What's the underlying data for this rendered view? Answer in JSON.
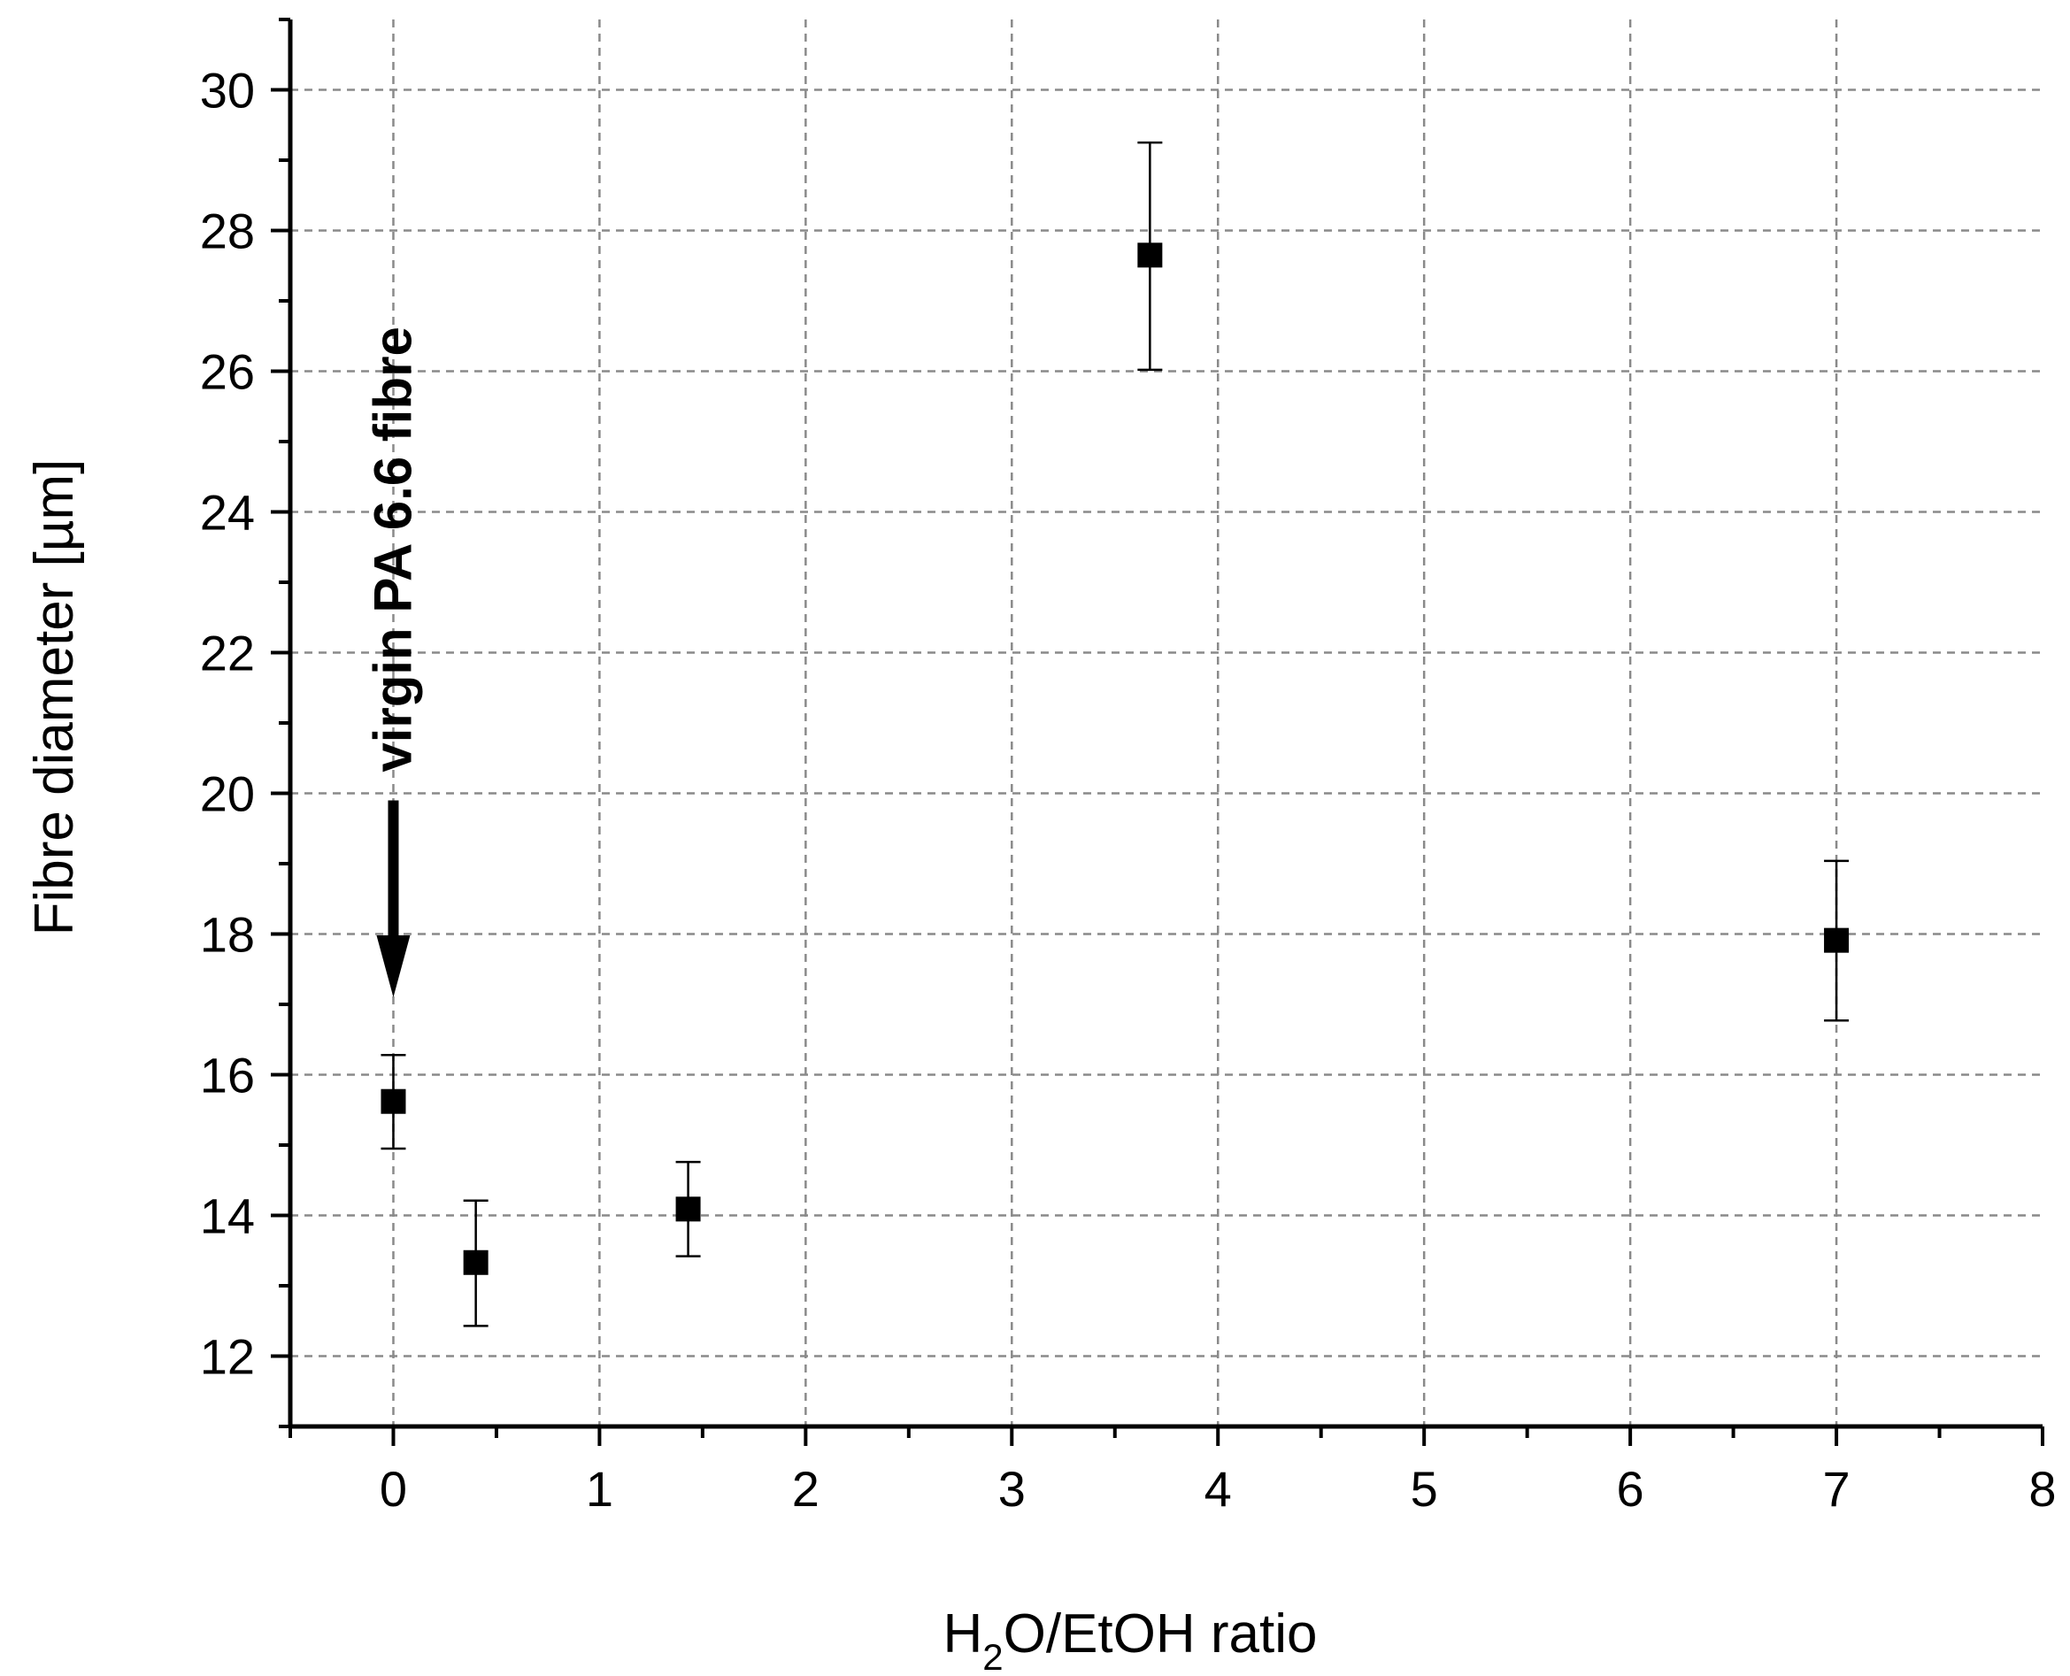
{
  "chart_data": {
    "type": "scatter",
    "xlabel_main": "H",
    "xlabel_sub": "2",
    "xlabel_rest": "O/EtOH ratio",
    "ylabel": "Fibre diameter [µm]",
    "xlim": [
      -0.5,
      8
    ],
    "ylim": [
      11,
      31
    ],
    "x_ticks": [
      0,
      1,
      2,
      3,
      4,
      5,
      6,
      7,
      8
    ],
    "x_tick_labels": [
      "0",
      "1",
      "2",
      "3",
      "4",
      "5",
      "6",
      "7",
      "8"
    ],
    "y_ticks": [
      12,
      14,
      16,
      18,
      20,
      22,
      24,
      26,
      28,
      30
    ],
    "y_tick_labels": [
      "12",
      "14",
      "16",
      "18",
      "20",
      "22",
      "24",
      "26",
      "28",
      "30"
    ],
    "grid": true,
    "points": [
      {
        "x": 0,
        "y": 15.62,
        "err_low": 14.95,
        "err_high": 16.28
      },
      {
        "x": 0.4,
        "y": 13.33,
        "err_low": 12.43,
        "err_high": 14.21
      },
      {
        "x": 1.43,
        "y": 14.09,
        "err_low": 13.42,
        "err_high": 14.76
      },
      {
        "x": 3.67,
        "y": 27.65,
        "err_low": 26.02,
        "err_high": 29.25
      },
      {
        "x": 7,
        "y": 17.91,
        "err_low": 16.77,
        "err_high": 19.04
      }
    ],
    "annotation": {
      "text": "virgin PA 6.6 fibre",
      "arrow_x": 0,
      "arrow_from_y": 19.9,
      "arrow_to_y": 17.1
    }
  }
}
